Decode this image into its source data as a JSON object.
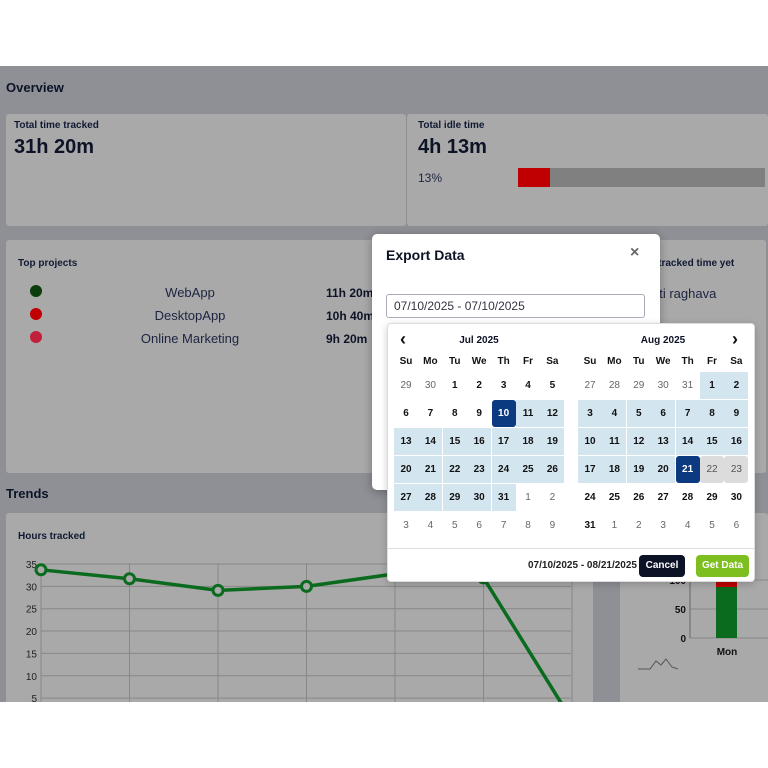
{
  "overview": {
    "title": "Overview",
    "total_tracked": {
      "label": "Total time tracked",
      "value": "31h 20m"
    },
    "total_idle": {
      "label": "Total idle time",
      "value": "4h 13m",
      "percent_label": "13%",
      "percent": 13,
      "bar_color": "#c00000"
    }
  },
  "top_projects": {
    "title": "Top projects",
    "items": [
      {
        "name": "WebApp",
        "time": "11h 20m",
        "color": "#0a3d0a"
      },
      {
        "name": "DesktopApp",
        "time": "10h 40m",
        "color": "#c00000"
      },
      {
        "name": "Online Marketing",
        "time": "9h 20m",
        "color": "#c0203a"
      }
    ]
  },
  "not_tracked": {
    "title": "t tracked time yet",
    "user": "nti raghava"
  },
  "trends": {
    "title": "Trends"
  },
  "chart_data": [
    {
      "type": "line",
      "title": "Hours tracked",
      "yticks": [
        5,
        10,
        15,
        20,
        25,
        30,
        35
      ],
      "ylim": [
        0,
        35
      ],
      "grid": true,
      "color": "#0a6b1e",
      "values": [
        33.7,
        31.7,
        29.1,
        30,
        32.8,
        31.9,
        0
      ]
    },
    {
      "type": "bar",
      "categories": [
        "Mon"
      ],
      "yticks": [
        0,
        50,
        100
      ],
      "series": [
        {
          "values": [
            88
          ],
          "color": "#0a6b1e"
        },
        {
          "values": [
            12
          ],
          "color": "#c00000"
        }
      ]
    }
  ],
  "modal": {
    "title": "Export Data",
    "close": "×",
    "input_value": "07/10/2025 - 07/10/2025"
  },
  "calendar": {
    "prev": "‹",
    "next": "›",
    "dow": [
      "Su",
      "Mo",
      "Tu",
      "We",
      "Th",
      "Fr",
      "Sa"
    ],
    "range": {
      "start": "2025-07-10",
      "end": "2025-08-21"
    },
    "hover": [
      "2025-08-22",
      "2025-08-23"
    ],
    "months": [
      {
        "title": "Jul 2025",
        "year": 2025,
        "month": 7,
        "weeks": [
          [
            29,
            30,
            1,
            2,
            3,
            4,
            5
          ],
          [
            6,
            7,
            8,
            9,
            10,
            11,
            12
          ],
          [
            13,
            14,
            15,
            16,
            17,
            18,
            19
          ],
          [
            20,
            21,
            22,
            23,
            24,
            25,
            26
          ],
          [
            27,
            28,
            29,
            30,
            31,
            1,
            2
          ],
          [
            3,
            4,
            5,
            6,
            7,
            8,
            9
          ]
        ]
      },
      {
        "title": "Aug 2025",
        "year": 2025,
        "month": 8,
        "weeks": [
          [
            27,
            28,
            29,
            30,
            31,
            1,
            2
          ],
          [
            3,
            4,
            5,
            6,
            7,
            8,
            9
          ],
          [
            10,
            11,
            12,
            13,
            14,
            15,
            16
          ],
          [
            17,
            18,
            19,
            20,
            21,
            22,
            23
          ],
          [
            24,
            25,
            26,
            27,
            28,
            29,
            30
          ],
          [
            31,
            1,
            2,
            3,
            4,
            5,
            6
          ]
        ]
      }
    ],
    "selected_label": "07/10/2025 - 08/21/2025",
    "cancel": "Cancel",
    "apply": "Get Data"
  }
}
